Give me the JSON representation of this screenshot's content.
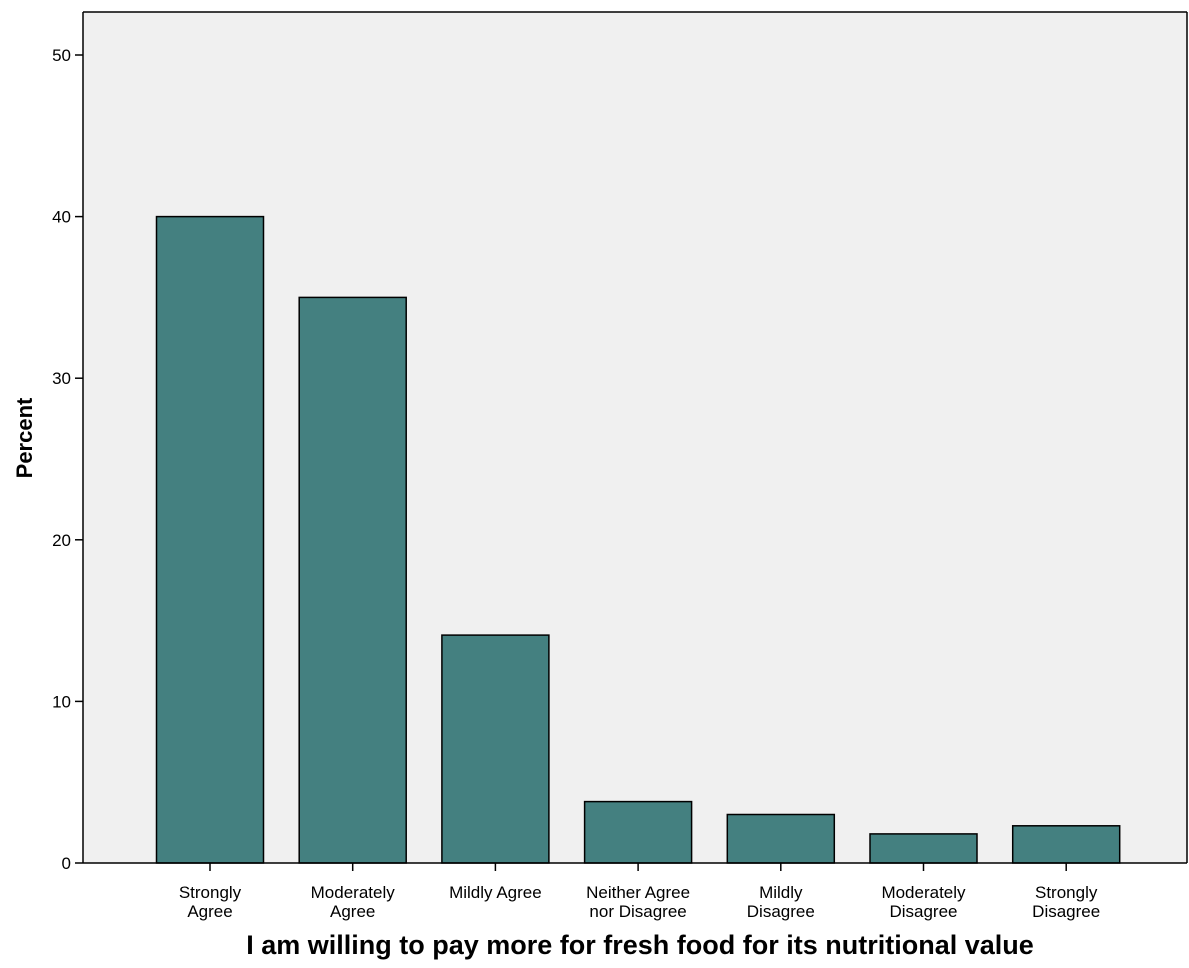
{
  "chart_data": {
    "type": "bar",
    "title": "",
    "xlabel": "I am willing to pay more for fresh food for its nutritional value",
    "ylabel": "Percent",
    "ylim": [
      0,
      50
    ],
    "yticks": [
      0,
      10,
      20,
      30,
      40,
      50
    ],
    "grid": false,
    "categories": [
      [
        "Strongly",
        "Agree"
      ],
      [
        "Moderately",
        "Agree"
      ],
      [
        "Mildly Agree"
      ],
      [
        "Neither Agree",
        "nor Disagree"
      ],
      [
        "Mildly",
        "Disagree"
      ],
      [
        "Moderately",
        "Disagree"
      ],
      [
        "Strongly",
        "Disagree"
      ]
    ],
    "values": [
      40.0,
      35.0,
      14.1,
      3.8,
      3.0,
      1.8,
      2.3
    ],
    "colors": {
      "bar_fill": "#448080",
      "bar_stroke": "#000000",
      "plot_background": "#f0f0f0",
      "axis": "#000000"
    }
  }
}
